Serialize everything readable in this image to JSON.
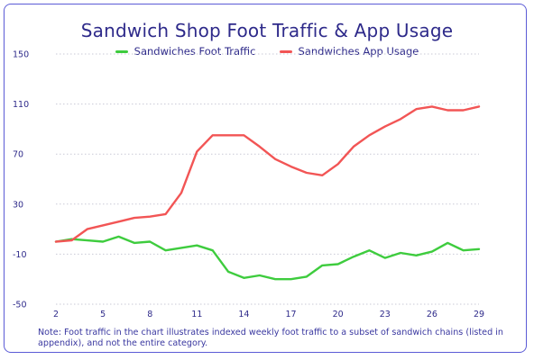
{
  "title": "Sandwich Shop Foot Traffic & App Usage",
  "note": "Note: Foot traffic in the chart illustrates indexed weekly foot traffic to a subset of sandwich chains (listed in appendix), and not the entire category.",
  "chart_data": {
    "type": "line",
    "title": "Sandwich Shop Foot Traffic & App Usage",
    "xlabel": "",
    "ylabel": "",
    "x": [
      2,
      3,
      4,
      5,
      6,
      7,
      8,
      9,
      10,
      11,
      12,
      13,
      14,
      15,
      16,
      17,
      18,
      19,
      20,
      21,
      22,
      23,
      24,
      25,
      26,
      27,
      28,
      29
    ],
    "x_ticks": [
      2,
      5,
      8,
      11,
      14,
      17,
      20,
      23,
      26,
      29
    ],
    "y_ticks": [
      150,
      110,
      70,
      30,
      -10,
      -50
    ],
    "xlim": [
      2,
      29
    ],
    "ylim": [
      -50,
      150
    ],
    "grid": "horizontal-dotted",
    "legend_position": "top-center",
    "series": [
      {
        "name": "Sandwiches Foot Traffic",
        "color": "#3ecc3e",
        "values": [
          0,
          2,
          1,
          0,
          4,
          -1,
          0,
          -7,
          -5,
          -3,
          -7,
          -24,
          -29,
          -27,
          -30,
          -30,
          -28,
          -19,
          -18,
          -12,
          -7,
          -13,
          -9,
          -11,
          -8,
          -1,
          -7,
          -6
        ]
      },
      {
        "name": "Sandwiches App Usage",
        "color": "#f25555",
        "values": [
          0,
          1,
          10,
          13,
          16,
          19,
          20,
          22,
          39,
          72,
          85,
          85,
          85,
          76,
          66,
          60,
          55,
          53,
          62,
          76,
          85,
          92,
          98,
          106,
          108,
          105,
          105,
          108
        ]
      }
    ]
  }
}
